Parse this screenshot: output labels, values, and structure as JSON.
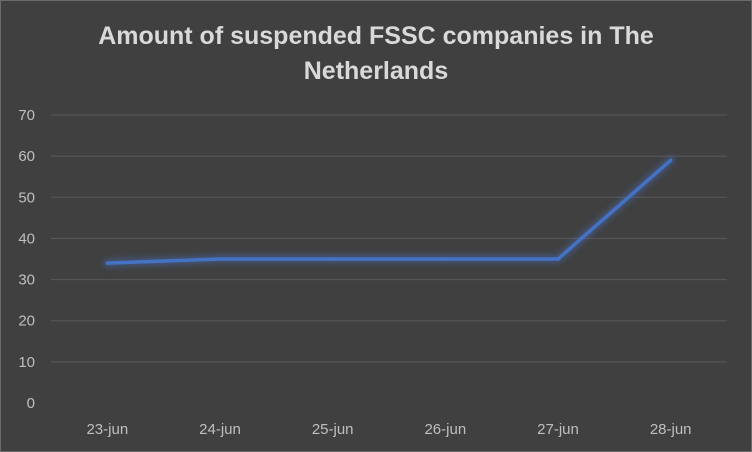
{
  "chart_data": {
    "type": "line",
    "title_lines": [
      "Amount of suspended FSSC companies in The",
      "Netherlands"
    ],
    "categories": [
      "23-jun",
      "24-jun",
      "25-jun",
      "26-jun",
      "27-jun",
      "28-jun"
    ],
    "series": [
      {
        "values": [
          34,
          35,
          35,
          35,
          35,
          59
        ]
      }
    ],
    "yticks": [
      "0",
      "10",
      "20",
      "30",
      "40",
      "50",
      "60",
      "70"
    ],
    "ylim": [
      0,
      70
    ],
    "grid": true,
    "legend": "none",
    "colors": {
      "line": "#4472C4",
      "grid": "#595959",
      "background": "#404040",
      "text": "#d9d9d9"
    }
  }
}
